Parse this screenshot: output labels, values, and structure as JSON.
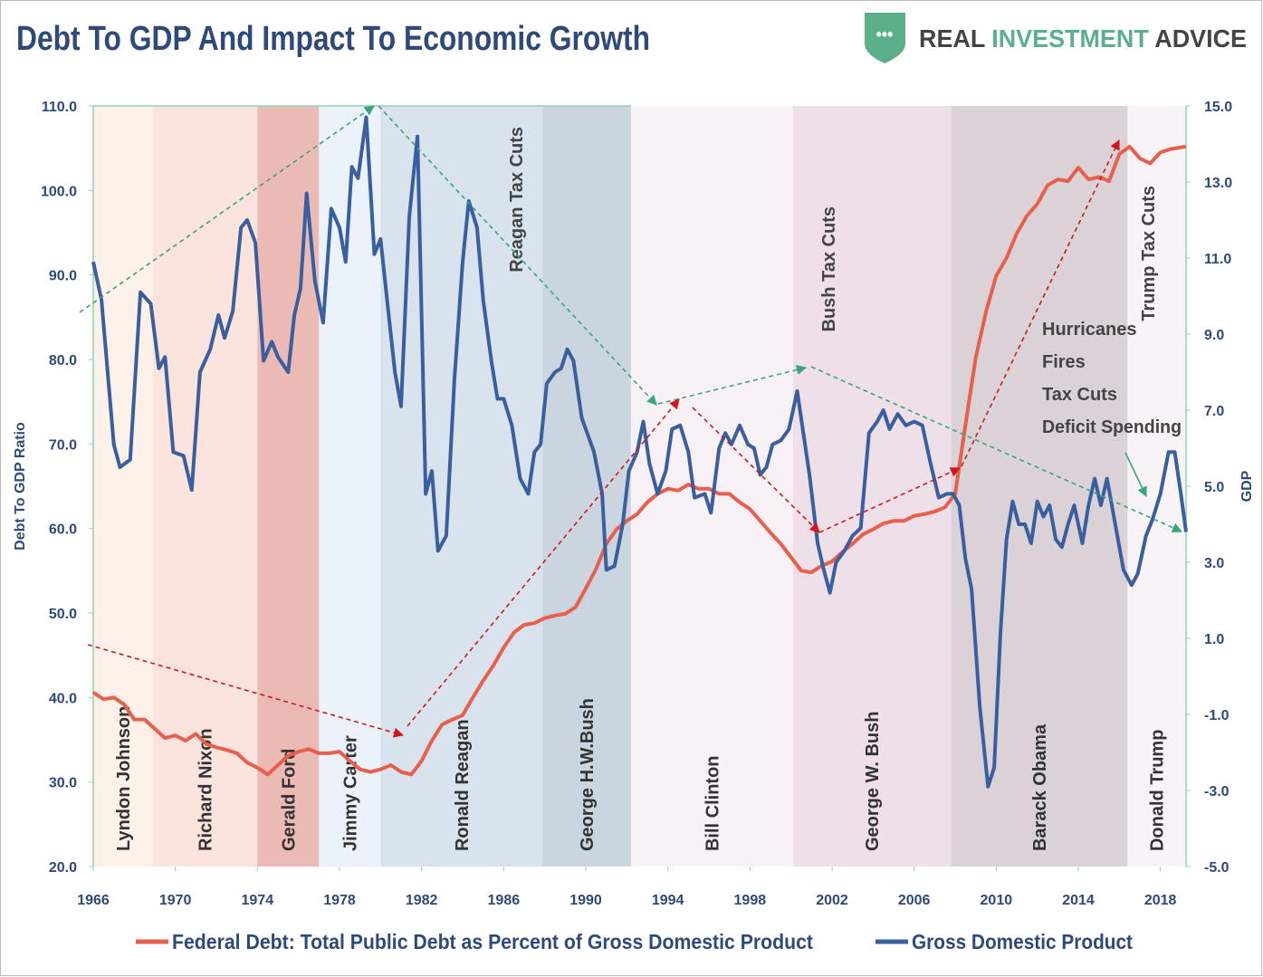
{
  "chart_data": {
    "type": "line",
    "title": "Debt To GDP And Impact To Economic Growth",
    "logo": [
      "REAL",
      "INVESTMENT",
      "ADVICE"
    ],
    "ylabel": "Debt To GDP Ratio",
    "y2label": "GDP",
    "xlim": [
      1966,
      2019.25
    ],
    "xticks": [
      1966,
      1970,
      1974,
      1978,
      1982,
      1986,
      1990,
      1994,
      1998,
      2002,
      2006,
      2010,
      2014,
      2018
    ],
    "ylim": [
      20,
      110
    ],
    "yticks": [
      {
        "value": 20,
        "label": "20.0"
      },
      {
        "value": 30,
        "label": "30.0"
      },
      {
        "value": 40,
        "label": "40.0"
      },
      {
        "value": 50,
        "label": "50.0"
      },
      {
        "value": 60,
        "label": "60.0"
      },
      {
        "value": 70,
        "label": "70.0"
      },
      {
        "value": 80,
        "label": "80.0"
      },
      {
        "value": 90,
        "label": "90.0"
      },
      {
        "value": 100,
        "label": "100.0"
      },
      {
        "value": 110,
        "label": "110.0"
      }
    ],
    "y2lim": [
      -5,
      15
    ],
    "y2ticks": [
      {
        "value": -5,
        "label": "-5.0"
      },
      {
        "value": -3,
        "label": "-3.0"
      },
      {
        "value": -1,
        "label": "-1.0"
      },
      {
        "value": 1,
        "label": "1.0"
      },
      {
        "value": 3,
        "label": "3.0"
      },
      {
        "value": 5,
        "label": "5.0"
      },
      {
        "value": 7,
        "label": "7.0"
      },
      {
        "value": 9,
        "label": "9.0"
      },
      {
        "value": 11,
        "label": "11.0"
      },
      {
        "value": 13,
        "label": "13.0"
      },
      {
        "value": 15,
        "label": "15.0"
      }
    ],
    "grid": false,
    "legend": "bottom",
    "presidents": [
      {
        "name": "Lyndon Johnson",
        "start": 1966,
        "end": 1968.9,
        "color": "#fdf1ea"
      },
      {
        "name": "Richard Nixon",
        "start": 1968.9,
        "end": 1974.0,
        "color": "#fbe4dd"
      },
      {
        "name": "Gerald Ford",
        "start": 1974.0,
        "end": 1977.0,
        "color": "#ebbab5"
      },
      {
        "name": "Jimmy Carter",
        "start": 1977.0,
        "end": 1980.0,
        "color": "#ecf2f9"
      },
      {
        "name": "Ronald Reagan",
        "start": 1980.0,
        "end": 1987.9,
        "color": "#d8e3ee"
      },
      {
        "name": "George H.W.Bush",
        "start": 1987.9,
        "end": 1992.2,
        "color": "#cbd5df"
      },
      {
        "name": "Bill Clinton",
        "start": 1992.2,
        "end": 2000.1,
        "color": "#f7f1f6"
      },
      {
        "name": "George W. Bush",
        "start": 2000.1,
        "end": 2007.8,
        "color": "#eedfe9"
      },
      {
        "name": "Barack Obama",
        "start": 2007.8,
        "end": 2016.4,
        "color": "#dbd2d8"
      },
      {
        "name": "Donald Trump",
        "start": 2016.4,
        "end": 2019.25,
        "color": "#f8f3f6"
      }
    ],
    "annotations": [
      "Reagan Tax Cuts",
      "Bush Tax Cuts",
      "Trump Tax Cuts"
    ],
    "notes": [
      "Hurricanes",
      "Fires",
      "Tax Cuts",
      "Deficit Spending"
    ],
    "series": [
      {
        "name": "Federal Debt: Total Public Debt as Percent of Gross Domestic Product",
        "color": "#e8604c",
        "x": [
          1966.0,
          1966.5,
          1967.0,
          1967.5,
          1968.0,
          1968.5,
          1969.0,
          1969.5,
          1970.0,
          1970.5,
          1971.0,
          1971.5,
          1972.0,
          1972.5,
          1973.0,
          1973.5,
          1974.0,
          1974.5,
          1975.0,
          1975.5,
          1976.0,
          1976.5,
          1977.0,
          1977.5,
          1978.0,
          1978.5,
          1979.0,
          1979.5,
          1980.0,
          1980.5,
          1981.0,
          1981.5,
          1982.0,
          1982.5,
          1983.0,
          1983.5,
          1984.0,
          1984.5,
          1985.0,
          1985.5,
          1986.0,
          1986.5,
          1987.0,
          1987.5,
          1988.0,
          1988.5,
          1989.0,
          1989.5,
          1990.0,
          1990.5,
          1991.0,
          1991.5,
          1992.0,
          1992.5,
          1993.0,
          1993.5,
          1994.0,
          1994.5,
          1995.0,
          1995.5,
          1996.0,
          1996.5,
          1997.0,
          1997.5,
          1998.0,
          1998.5,
          1999.0,
          1999.5,
          2000.0,
          2000.5,
          2001.0,
          2001.5,
          2002.0,
          2002.5,
          2003.0,
          2003.5,
          2004.0,
          2004.5,
          2005.0,
          2005.5,
          2006.0,
          2006.5,
          2007.0,
          2007.5,
          2008.0,
          2008.5,
          2009.0,
          2009.5,
          2010.0,
          2010.5,
          2011.0,
          2011.5,
          2012.0,
          2012.5,
          2013.0,
          2013.5,
          2014.0,
          2014.5,
          2015.0,
          2015.5,
          2016.0,
          2016.5,
          2017.0,
          2017.5,
          2018.0,
          2018.5,
          2019.25
        ],
        "values": [
          40.6,
          39.8,
          40.0,
          39.2,
          37.4,
          37.4,
          36.3,
          35.2,
          35.5,
          34.9,
          35.7,
          34.5,
          34.1,
          33.8,
          33.4,
          32.3,
          31.7,
          30.9,
          32.0,
          33.1,
          33.6,
          33.9,
          33.4,
          33.4,
          33.6,
          32.5,
          31.5,
          31.2,
          31.5,
          32.0,
          31.2,
          30.9,
          32.5,
          34.9,
          36.8,
          37.4,
          37.9,
          40.0,
          42.0,
          43.8,
          45.9,
          47.7,
          48.6,
          48.8,
          49.4,
          49.7,
          49.9,
          50.7,
          52.9,
          55.2,
          58.2,
          59.9,
          60.9,
          61.7,
          63.1,
          64.1,
          64.7,
          64.5,
          65.2,
          64.7,
          64.7,
          64.1,
          64.1,
          63.1,
          62.3,
          60.9,
          59.5,
          58.2,
          56.6,
          55.0,
          54.8,
          55.6,
          56.1,
          57.2,
          58.2,
          59.3,
          59.9,
          60.6,
          60.9,
          60.9,
          61.5,
          61.7,
          62.0,
          62.5,
          64.1,
          72.2,
          80.2,
          85.6,
          89.9,
          92.0,
          94.9,
          97.0,
          98.4,
          100.6,
          101.3,
          101.1,
          102.7,
          101.3,
          101.6,
          101.1,
          104.3,
          105.2,
          103.8,
          103.2,
          104.5,
          104.9,
          105.2
        ]
      },
      {
        "name": "Gross Domestic Product",
        "color": "#3a5f9e",
        "axis": "y2",
        "x": [
          1966.0,
          1966.4,
          1967.0,
          1967.3,
          1967.8,
          1968.3,
          1968.8,
          1969.2,
          1969.5,
          1969.9,
          1970.4,
          1970.8,
          1971.2,
          1971.7,
          1972.1,
          1972.4,
          1972.8,
          1973.2,
          1973.5,
          1973.9,
          1974.3,
          1974.7,
          1975.0,
          1975.5,
          1975.8,
          1976.1,
          1976.4,
          1976.8,
          1977.2,
          1977.6,
          1978.0,
          1978.3,
          1978.6,
          1978.9,
          1979.3,
          1979.7,
          1980.0,
          1980.3,
          1980.7,
          1981.0,
          1981.4,
          1981.8,
          1982.2,
          1982.5,
          1982.8,
          1983.2,
          1983.6,
          1984.0,
          1984.3,
          1984.7,
          1985.0,
          1985.4,
          1985.7,
          1986.0,
          1986.4,
          1986.8,
          1987.2,
          1987.5,
          1987.8,
          1988.1,
          1988.5,
          1988.8,
          1989.1,
          1989.4,
          1989.8,
          1990.0,
          1990.4,
          1990.8,
          1991.0,
          1991.4,
          1991.8,
          1992.1,
          1992.5,
          1992.8,
          1993.1,
          1993.5,
          1993.9,
          1994.2,
          1994.6,
          1995.0,
          1995.3,
          1995.8,
          1996.1,
          1996.5,
          1996.8,
          1997.1,
          1997.5,
          1997.9,
          1998.2,
          1998.5,
          1998.8,
          1999.1,
          1999.5,
          1999.9,
          2000.3,
          2000.6,
          2000.9,
          2001.3,
          2001.6,
          2001.9,
          2002.2,
          2002.6,
          2003.0,
          2003.4,
          2003.8,
          2004.2,
          2004.5,
          2004.8,
          2005.2,
          2005.6,
          2006.0,
          2006.4,
          2006.8,
          2007.2,
          2007.6,
          2007.9,
          2008.2,
          2008.5,
          2008.8,
          2009.2,
          2009.6,
          2009.9,
          2010.2,
          2010.5,
          2010.8,
          2011.1,
          2011.4,
          2011.7,
          2012.0,
          2012.3,
          2012.6,
          2012.9,
          2013.2,
          2013.5,
          2013.8,
          2014.2,
          2014.5,
          2014.8,
          2015.1,
          2015.4,
          2015.8,
          2016.2,
          2016.6,
          2016.9,
          2017.3,
          2017.6,
          2018.0,
          2018.4,
          2018.7,
          2019.0,
          2019.25
        ],
        "values": [
          10.9,
          9.9,
          6.1,
          5.5,
          5.7,
          10.1,
          9.8,
          8.1,
          8.4,
          5.9,
          5.8,
          4.9,
          8.0,
          8.6,
          9.5,
          8.9,
          9.6,
          11.8,
          12.0,
          11.4,
          8.3,
          8.8,
          8.4,
          8.0,
          9.5,
          10.2,
          12.7,
          10.4,
          9.3,
          12.3,
          11.8,
          10.9,
          13.4,
          13.1,
          14.7,
          11.1,
          11.5,
          10.0,
          8.0,
          7.1,
          12.1,
          14.2,
          4.8,
          5.4,
          3.3,
          3.7,
          7.8,
          10.9,
          12.5,
          11.8,
          9.9,
          8.3,
          7.3,
          7.3,
          6.6,
          5.2,
          4.8,
          5.9,
          6.1,
          7.7,
          8.0,
          8.1,
          8.6,
          8.3,
          6.8,
          6.5,
          5.9,
          4.8,
          2.8,
          2.9,
          4.0,
          5.4,
          5.9,
          6.7,
          5.6,
          4.8,
          5.4,
          6.5,
          6.6,
          5.9,
          4.7,
          4.8,
          4.3,
          6.0,
          6.4,
          6.1,
          6.6,
          6.1,
          6.0,
          5.3,
          5.5,
          6.1,
          6.2,
          6.5,
          7.5,
          6.4,
          5.3,
          3.5,
          2.8,
          2.2,
          3.0,
          3.3,
          3.7,
          3.9,
          6.4,
          6.7,
          7.0,
          6.5,
          6.9,
          6.6,
          6.7,
          6.6,
          5.6,
          4.7,
          4.8,
          4.8,
          4.5,
          3.1,
          2.3,
          -0.8,
          -2.9,
          -2.4,
          1.1,
          3.6,
          4.6,
          4.0,
          4.0,
          3.5,
          4.6,
          4.2,
          4.5,
          3.6,
          3.4,
          4.0,
          4.5,
          3.5,
          4.5,
          5.2,
          4.5,
          5.2,
          4.0,
          2.8,
          2.4,
          2.7,
          3.7,
          4.1,
          4.8,
          5.9,
          5.9,
          4.8,
          3.8
        ]
      }
    ]
  }
}
